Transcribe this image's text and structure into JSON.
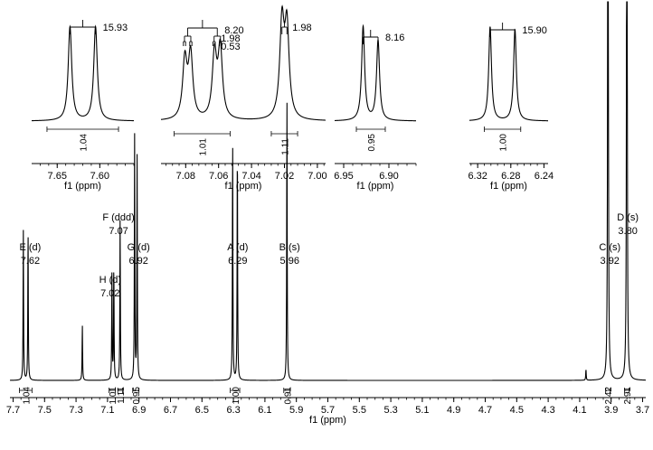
{
  "chart_data": {
    "type": "line",
    "title": "",
    "xlabel": "f1 (ppm)",
    "ylabel": "",
    "x_reversed": true,
    "xlim": [
      7.72,
      3.68
    ],
    "xticks": [
      7.7,
      7.5,
      7.3,
      7.1,
      6.9,
      6.7,
      6.5,
      6.3,
      6.1,
      5.9,
      5.7,
      5.5,
      5.3,
      5.1,
      4.9,
      4.7,
      4.5,
      4.3,
      4.1,
      3.9,
      3.7
    ],
    "xtick_labels": [
      "7.7",
      "7.5",
      "7.3",
      "7.1",
      "6.9",
      "6.7",
      "6.5",
      "6.3",
      "6.1",
      "5.9",
      "5.7",
      "5.5",
      "5.3",
      "5.1",
      "4.9",
      "4.7",
      "4.5",
      "4.3",
      "4.1",
      "3.9",
      "3.7"
    ],
    "grid": false,
    "peaks": [
      {
        "ppm": 7.635,
        "height": 0.27
      },
      {
        "ppm": 7.605,
        "height": 0.27
      },
      {
        "ppm": 7.26,
        "height": 0.1
      },
      {
        "ppm": 7.072,
        "height": 0.19
      },
      {
        "ppm": 7.06,
        "height": 0.21
      },
      {
        "ppm": 7.02,
        "height": 0.29
      },
      {
        "ppm": 6.928,
        "height": 0.44
      },
      {
        "ppm": 6.912,
        "height": 0.4
      },
      {
        "ppm": 6.305,
        "height": 0.44
      },
      {
        "ppm": 6.275,
        "height": 0.43
      },
      {
        "ppm": 5.96,
        "height": 0.51
      },
      {
        "ppm": 3.92,
        "height": 2.0
      },
      {
        "ppm": 3.8,
        "height": 2.0
      },
      {
        "ppm": 4.06,
        "height": 0.02
      }
    ],
    "multiplets": [
      {
        "id": "E",
        "label": "E (d)",
        "shift": "7.62",
        "ppm": 7.62
      },
      {
        "id": "F",
        "label": "F (ddd)",
        "shift": "7.07",
        "ppm": 7.07
      },
      {
        "id": "H",
        "label": "H (d)",
        "shift": "7.02",
        "ppm": 7.02
      },
      {
        "id": "G",
        "label": "G (d)",
        "shift": "6.92",
        "ppm": 6.92
      },
      {
        "id": "A",
        "label": "A (d)",
        "shift": "6.29",
        "ppm": 6.29
      },
      {
        "id": "B",
        "label": "B (s)",
        "shift": "5.96",
        "ppm": 5.96
      },
      {
        "id": "C",
        "label": "C (s)",
        "shift": "3.92",
        "ppm": 3.92
      },
      {
        "id": "D",
        "label": "D (s)",
        "shift": "3.80",
        "ppm": 3.8
      }
    ],
    "integrals": [
      {
        "value": "1.04",
        "from": 7.66,
        "to": 7.58
      },
      {
        "value": "1.01",
        "from": 7.09,
        "to": 7.05
      },
      {
        "value": "1.11",
        "from": 7.035,
        "to": 7.005
      },
      {
        "value": "0.95",
        "from": 6.94,
        "to": 6.9
      },
      {
        "value": "1.00",
        "from": 6.32,
        "to": 6.26
      },
      {
        "value": "0.91",
        "from": 5.98,
        "to": 5.94
      },
      {
        "value": "2.42",
        "from": 3.935,
        "to": 3.905
      },
      {
        "value": "2.91",
        "from": 3.815,
        "to": 3.785
      }
    ],
    "insets": [
      {
        "xlim": [
          7.68,
          7.56
        ],
        "xticks": [
          7.65,
          7.6
        ],
        "xtick_labels": [
          "7.65",
          "7.60"
        ],
        "xlabel": "f1 (ppm)",
        "peaks": [
          {
            "ppm": 7.635,
            "height": 1.0
          },
          {
            "ppm": 7.605,
            "height": 1.0
          }
        ],
        "peak_width": 0.0025,
        "integral": {
          "value": "1.04",
          "from": 7.662,
          "to": 7.578
        },
        "coupling": {
          "values": [
            "15.93"
          ],
          "from": 7.635,
          "to": 7.605,
          "tree_levels": 1
        }
      },
      {
        "xlim": [
          7.095,
          6.995
        ],
        "xticks": [
          7.08,
          7.06,
          7.04,
          7.02,
          7.0
        ],
        "xtick_labels": [
          "7.08",
          "7.06",
          "7.04",
          "7.02",
          "7.00"
        ],
        "xlabel": "f1 (ppm)",
        "peaks": [
          {
            "ppm": 7.0805,
            "height": 0.62
          },
          {
            "ppm": 7.077,
            "height": 0.68
          },
          {
            "ppm": 7.0625,
            "height": 0.68
          },
          {
            "ppm": 7.059,
            "height": 0.74
          },
          {
            "ppm": 7.0215,
            "height": 1.0
          },
          {
            "ppm": 7.0185,
            "height": 0.95
          }
        ],
        "peak_width": 0.0016,
        "integrals": [
          {
            "value": "1.01",
            "from": 7.087,
            "to": 7.053
          },
          {
            "value": "1.11",
            "from": 7.028,
            "to": 7.012
          }
        ],
        "coupling_ddd": {
          "values": [
            "8.20",
            "1.98",
            "0.53"
          ],
          "from": 7.0788,
          "to": 7.0608
        },
        "coupling_d": {
          "values": [
            "1.98"
          ],
          "from": 7.0215,
          "to": 7.0185
        }
      },
      {
        "xlim": [
          6.96,
          6.87
        ],
        "xticks": [
          6.95,
          6.9
        ],
        "xtick_labels": [
          "6.95",
          "6.90"
        ],
        "xlabel": "f1 (ppm)",
        "peaks": [
          {
            "ppm": 6.9285,
            "height": 1.0
          },
          {
            "ppm": 6.912,
            "height": 0.85
          }
        ],
        "peak_width": 0.002,
        "integral": {
          "value": "0.95",
          "from": 6.936,
          "to": 6.904
        },
        "coupling": {
          "values": [
            "8.16"
          ],
          "from": 6.9285,
          "to": 6.912,
          "tree_levels": 1
        }
      },
      {
        "xlim": [
          6.33,
          6.235
        ],
        "xticks": [
          6.32,
          6.28,
          6.24
        ],
        "xtick_labels": [
          "6.32",
          "6.28",
          "6.24"
        ],
        "xlabel": "f1 (ppm)",
        "peaks": [
          {
            "ppm": 6.305,
            "height": 1.0
          },
          {
            "ppm": 6.275,
            "height": 0.97
          }
        ],
        "peak_width": 0.002,
        "integral": {
          "value": "1.00",
          "from": 6.312,
          "to": 6.268
        },
        "coupling": {
          "values": [
            "15.90"
          ],
          "from": 6.305,
          "to": 6.275,
          "tree_levels": 1
        }
      }
    ]
  }
}
